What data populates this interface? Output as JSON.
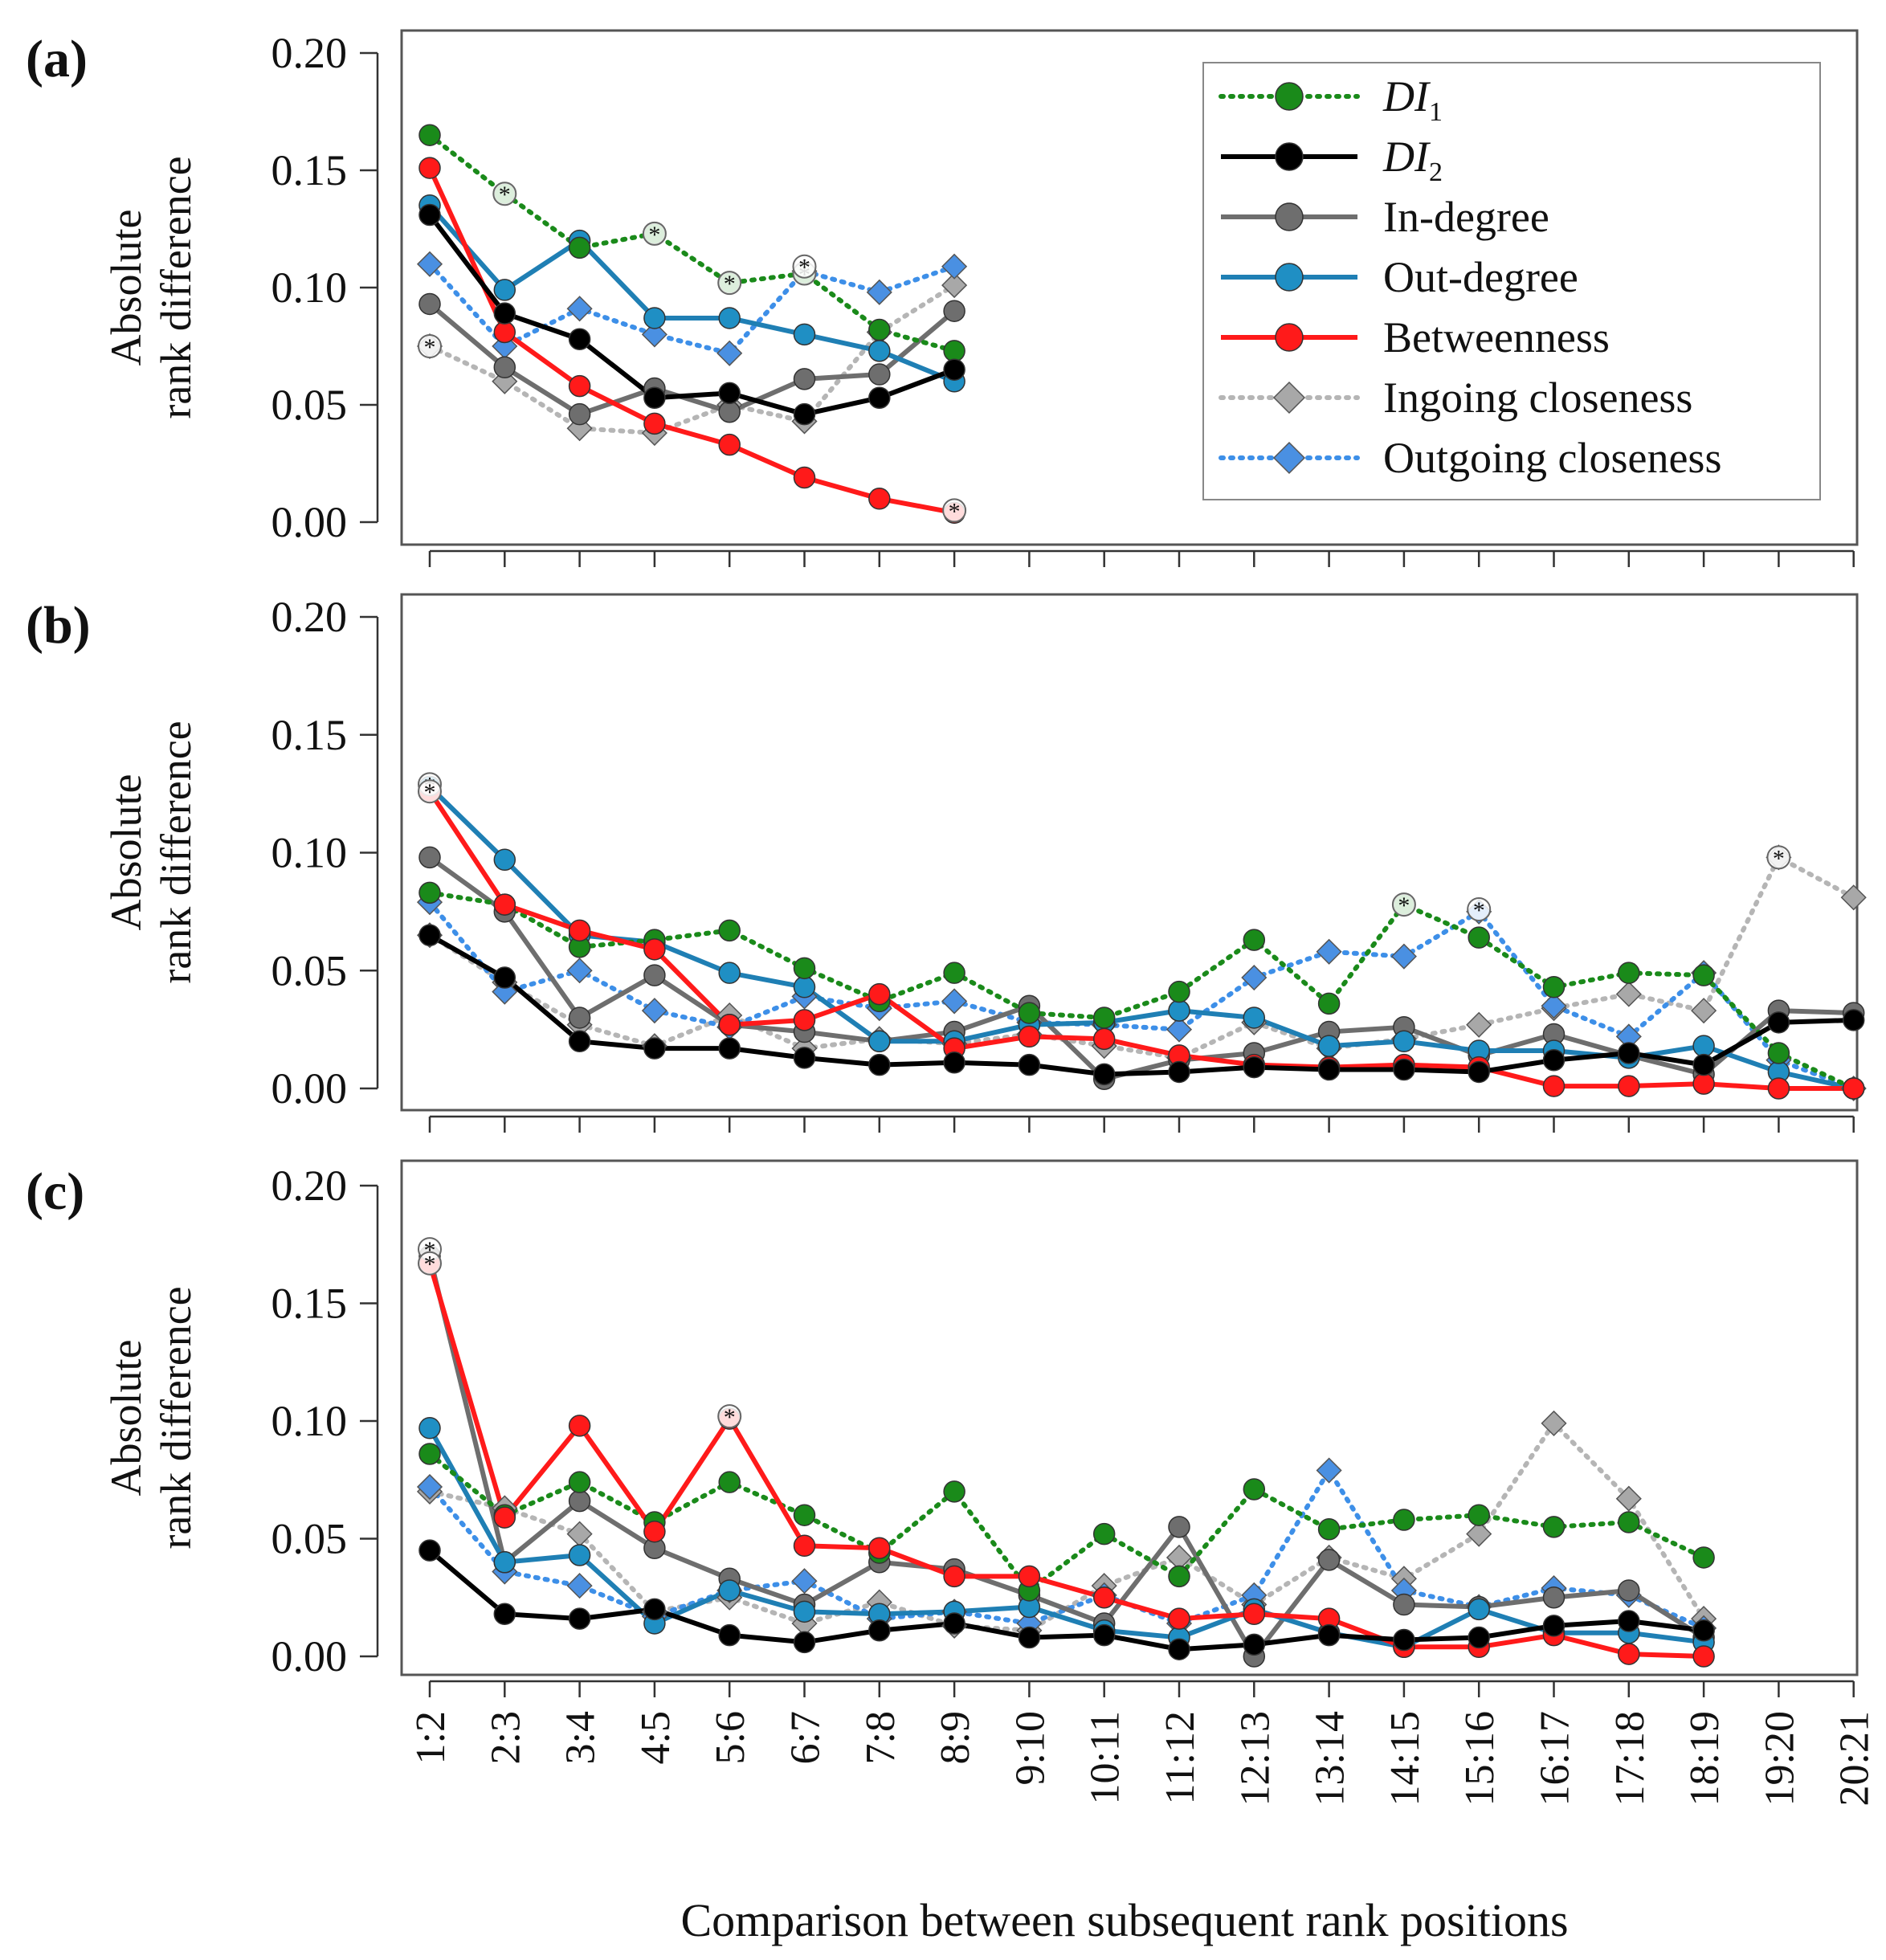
{
  "figure": {
    "xlabel": "Comparison between subsequent rank positions",
    "categories": [
      "1:2",
      "2:3",
      "3:4",
      "4:5",
      "5:6",
      "6:7",
      "7:8",
      "8:9",
      "9:10",
      "10:11",
      "11:12",
      "12:13",
      "13:14",
      "14:15",
      "15:16",
      "16:17",
      "17:18",
      "18:19",
      "19:20",
      "20:21"
    ]
  },
  "legend": [
    {
      "key": "DI1",
      "label": "DI",
      "subscript": "1",
      "italic": true
    },
    {
      "key": "DI2",
      "label": "DI",
      "subscript": "2",
      "italic": true
    },
    {
      "key": "indeg",
      "label": "In-degree"
    },
    {
      "key": "outdeg",
      "label": "Out-degree"
    },
    {
      "key": "betw",
      "label": "Betweenness"
    },
    {
      "key": "inclos",
      "label": "Ingoing closeness"
    },
    {
      "key": "outclos",
      "label": "Outgoing closeness"
    }
  ],
  "styles": {
    "DI1": {
      "color": "#1a8a1a",
      "fill": "#1a8a1a",
      "dash": "dotted",
      "marker": "circle"
    },
    "DI2": {
      "color": "#000000",
      "fill": "#000000",
      "dash": "solid",
      "marker": "circle"
    },
    "indeg": {
      "color": "#6e6e6e",
      "fill": "#6e6e6e",
      "dash": "solid",
      "marker": "circle"
    },
    "outdeg": {
      "color": "#1f7fb4",
      "fill": "#1f8fc4",
      "dash": "solid",
      "marker": "circle"
    },
    "betw": {
      "color": "#ff1a1a",
      "fill": "#ff1a1a",
      "dash": "solid",
      "marker": "circle"
    },
    "inclos": {
      "color": "#b5b5b5",
      "fill": "#a8a8a8",
      "dash": "dotted",
      "marker": "diamond"
    },
    "outclos": {
      "color": "#3d8fe8",
      "fill": "#4a90e2",
      "dash": "dotted",
      "marker": "diamond"
    }
  },
  "chart_data": [
    {
      "panel": "(a)",
      "type": "line",
      "ylabel": "Absolute rank difference",
      "ylim": [
        0,
        0.2
      ],
      "yticks": [
        "0.00",
        "0.05",
        "0.10",
        "0.15",
        "0.20"
      ],
      "series": [
        {
          "name": "DI1",
          "values": [
            0.165,
            0.14,
            0.117,
            0.123,
            0.102,
            0.106,
            0.082,
            0.073
          ]
        },
        {
          "name": "DI2",
          "values": [
            0.131,
            0.089,
            0.078,
            0.053,
            0.055,
            0.046,
            0.053,
            0.065
          ]
        },
        {
          "name": "In-degree",
          "values": [
            0.093,
            0.066,
            0.046,
            0.057,
            0.047,
            0.061,
            0.063,
            0.09
          ]
        },
        {
          "name": "Out-degree",
          "values": [
            0.135,
            0.099,
            0.12,
            0.087,
            0.087,
            0.08,
            0.073,
            0.06
          ]
        },
        {
          "name": "Betweenness",
          "values": [
            0.151,
            0.081,
            0.058,
            0.042,
            0.033,
            0.019,
            0.01,
            0.004
          ]
        },
        {
          "name": "Ingoing closeness",
          "values": [
            0.075,
            0.06,
            0.04,
            0.038,
            0.05,
            0.043,
            0.081,
            0.101
          ]
        },
        {
          "name": "Outgoing closeness",
          "values": [
            0.11,
            0.075,
            0.091,
            0.08,
            0.072,
            0.107,
            0.098,
            0.109
          ]
        }
      ],
      "outliers": [
        {
          "index": 1,
          "value": 0.14
        },
        {
          "index": 3,
          "value": 0.123
        },
        {
          "index": 4,
          "value": 0.102
        },
        {
          "index": 5,
          "value": 0.106
        },
        {
          "index": 5,
          "value": 0.109
        },
        {
          "index": 7,
          "value": 0.005
        },
        {
          "index": 0,
          "value": 0.075
        }
      ]
    },
    {
      "panel": "(b)",
      "type": "line",
      "ylabel": "Absolute rank difference",
      "ylim": [
        0,
        0.2
      ],
      "yticks": [
        "0.00",
        "0.05",
        "0.10",
        "0.15",
        "0.20"
      ],
      "series": [
        {
          "name": "DI1",
          "values": [
            0.083,
            0.078,
            0.06,
            0.063,
            0.067,
            0.051,
            0.037,
            0.049,
            0.032,
            0.03,
            0.041,
            0.063,
            0.036,
            0.078,
            0.064,
            0.043,
            0.049,
            0.048,
            0.015,
            0.0
          ]
        },
        {
          "name": "DI2",
          "values": [
            0.065,
            0.047,
            0.02,
            0.017,
            0.017,
            0.013,
            0.01,
            0.011,
            0.01,
            0.006,
            0.007,
            0.009,
            0.008,
            0.008,
            0.007,
            0.012,
            0.015,
            0.01,
            0.028,
            0.029
          ]
        },
        {
          "name": "In-degree",
          "values": [
            0.098,
            0.075,
            0.03,
            0.048,
            0.027,
            0.024,
            0.02,
            0.024,
            0.035,
            0.004,
            0.012,
            0.015,
            0.024,
            0.026,
            0.014,
            0.023,
            0.014,
            0.006,
            0.033,
            0.032
          ]
        },
        {
          "name": "Out-degree",
          "values": [
            0.128,
            0.097,
            0.065,
            0.062,
            0.049,
            0.043,
            0.02,
            0.02,
            0.027,
            0.028,
            0.033,
            0.03,
            0.018,
            0.02,
            0.016,
            0.016,
            0.013,
            0.018,
            0.007,
            0.0
          ]
        },
        {
          "name": "Betweenness",
          "values": [
            0.126,
            0.078,
            0.067,
            0.059,
            0.027,
            0.029,
            0.04,
            0.017,
            0.022,
            0.021,
            0.014,
            0.01,
            0.009,
            0.01,
            0.009,
            0.001,
            0.001,
            0.002,
            0.0,
            0.0
          ]
        },
        {
          "name": "Ingoing closeness",
          "values": [
            0.065,
            0.045,
            0.027,
            0.018,
            0.031,
            0.017,
            0.021,
            0.019,
            0.023,
            0.018,
            0.013,
            0.028,
            0.017,
            0.021,
            0.027,
            0.034,
            0.04,
            0.033,
            0.098,
            0.081
          ]
        },
        {
          "name": "Outgoing closeness",
          "values": [
            0.079,
            0.041,
            0.05,
            0.033,
            0.026,
            0.039,
            0.034,
            0.037,
            0.028,
            0.027,
            0.025,
            0.047,
            0.058,
            0.056,
            0.075,
            0.035,
            0.022,
            0.049,
            0.012,
            0.0
          ]
        }
      ],
      "outliers": [
        {
          "index": 0,
          "value": 0.129
        },
        {
          "index": 0,
          "value": 0.126
        },
        {
          "index": 13,
          "value": 0.078
        },
        {
          "index": 14,
          "value": 0.076
        },
        {
          "index": 18,
          "value": 0.098
        }
      ]
    },
    {
      "panel": "(c)",
      "type": "line",
      "ylabel": "Absolute rank difference",
      "ylim": [
        0,
        0.2
      ],
      "yticks": [
        "0.00",
        "0.05",
        "0.10",
        "0.15",
        "0.20"
      ],
      "series": [
        {
          "name": "DI1",
          "values": [
            0.086,
            0.06,
            0.074,
            0.057,
            0.074,
            0.06,
            0.044,
            0.07,
            0.028,
            0.052,
            0.034,
            0.071,
            0.054,
            0.058,
            0.06,
            0.055,
            0.057,
            0.042
          ]
        },
        {
          "name": "DI2",
          "values": [
            0.045,
            0.018,
            0.016,
            0.02,
            0.009,
            0.006,
            0.011,
            0.014,
            0.008,
            0.009,
            0.003,
            0.005,
            0.009,
            0.007,
            0.008,
            0.013,
            0.015,
            0.011
          ]
        },
        {
          "name": "In-degree",
          "values": [
            0.17,
            0.04,
            0.066,
            0.046,
            0.033,
            0.022,
            0.04,
            0.037,
            0.026,
            0.014,
            0.055,
            0.0,
            0.041,
            0.022,
            0.021,
            0.025,
            0.028,
            0.008
          ]
        },
        {
          "name": "Out-degree",
          "values": [
            0.097,
            0.04,
            0.043,
            0.014,
            0.028,
            0.019,
            0.018,
            0.019,
            0.021,
            0.011,
            0.008,
            0.02,
            0.01,
            0.004,
            0.02,
            0.01,
            0.01,
            0.006
          ]
        },
        {
          "name": "Betweenness",
          "values": [
            0.167,
            0.059,
            0.098,
            0.053,
            0.101,
            0.047,
            0.046,
            0.034,
            0.034,
            0.025,
            0.016,
            0.018,
            0.016,
            0.004,
            0.004,
            0.009,
            0.001,
            0.0
          ]
        },
        {
          "name": "Ingoing closeness",
          "values": [
            0.07,
            0.063,
            0.052,
            0.019,
            0.025,
            0.014,
            0.023,
            0.013,
            0.011,
            0.03,
            0.042,
            0.022,
            0.042,
            0.033,
            0.052,
            0.099,
            0.067,
            0.016
          ]
        },
        {
          "name": "Outgoing closeness",
          "values": [
            0.072,
            0.036,
            0.03,
            0.017,
            0.028,
            0.032,
            0.016,
            0.019,
            0.014,
            0.026,
            0.014,
            0.026,
            0.079,
            0.028,
            0.021,
            0.029,
            0.026,
            0.012
          ]
        }
      ],
      "outliers": [
        {
          "index": 0,
          "value": 0.173
        },
        {
          "index": 0,
          "value": 0.167
        },
        {
          "index": 4,
          "value": 0.102
        }
      ]
    }
  ]
}
